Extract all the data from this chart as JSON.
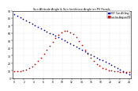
{
  "title": "Sun Altitude Angle & Sun Incidence Angle on PV Panels",
  "legend_labels": [
    "HOY: Sun Alt Ang",
    "Sun Inc Ang on PV"
  ],
  "legend_colors": [
    "#0000bb",
    "#cc0000"
  ],
  "legend_box_colors": [
    "#0000ff",
    "#ff0000"
  ],
  "bg_color": "#ffffff",
  "grid_color": "#bbbbbb",
  "y_min": 0,
  "y_max": 90,
  "y_ticks": [
    0,
    10,
    20,
    30,
    40,
    50,
    60,
    70,
    80,
    90
  ],
  "y_tick_labels": [
    "0",
    "10",
    "20",
    "30",
    "40",
    "50",
    "60",
    "70",
    "80",
    "90"
  ],
  "x_ticks_labels": [
    "0",
    "1",
    "2",
    "3",
    "4",
    "5",
    "6",
    "7",
    "8",
    "9",
    "10",
    "11",
    "12",
    "13",
    "14",
    "15",
    "16",
    "17",
    "18",
    "19",
    "20",
    "21",
    "22",
    "23"
  ],
  "n_points": 40,
  "dot_size": 1.5,
  "title_fontsize": 2.5,
  "tick_fontsize": 2.2,
  "legend_fontsize": 2.0
}
